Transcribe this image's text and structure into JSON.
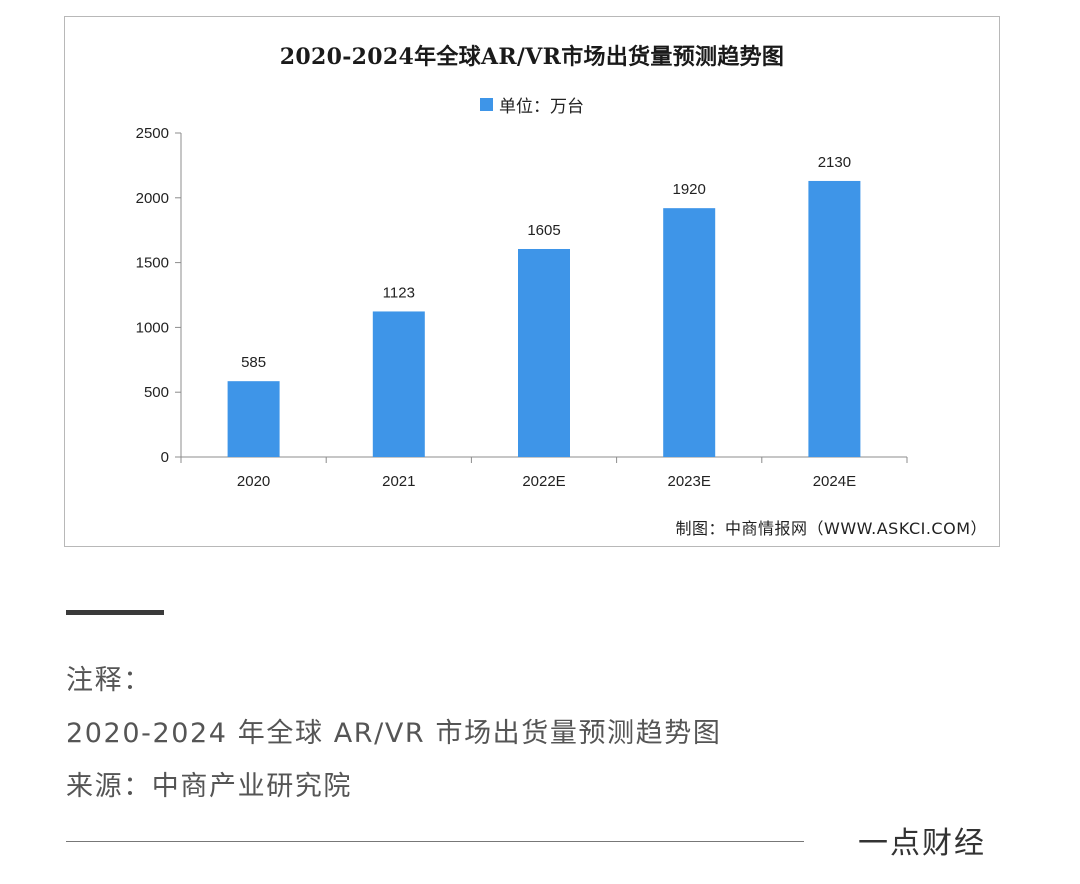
{
  "chart_data": {
    "type": "bar",
    "title": "2020-2024年全球AR/VR市场出货量预测趋势图",
    "legend": "单位：万台",
    "categories": [
      "2020",
      "2021",
      "2022E",
      "2023E",
      "2024E"
    ],
    "values": [
      585,
      1123,
      1605,
      1920,
      2130
    ],
    "ylim": [
      0,
      2500
    ],
    "yticks": [
      0,
      500,
      1000,
      1500,
      2000,
      2500
    ],
    "bar_color": "#3e95e8",
    "grid": false,
    "legend_position": "top"
  },
  "credit": "制图：中商情报网（WWW.ASKCI.COM）",
  "notes": {
    "label": "注释：",
    "title": "2020-2024 年全球 AR/VR 市场出货量预测趋势图",
    "source": "来源：中商产业研究院"
  },
  "brand": "一点财经"
}
